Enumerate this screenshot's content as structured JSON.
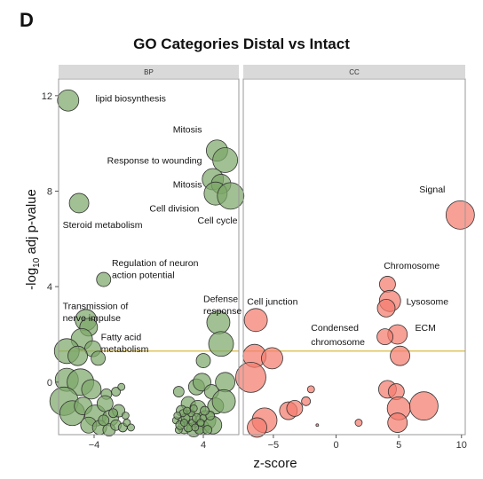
{
  "panel_letter": "D",
  "chart_data": {
    "type": "scatter",
    "title": "GO Categories Distal vs Intact",
    "xlabel": "z-score",
    "ylabel_main": "-log",
    "ylabel_sub": "10",
    "ylabel_tail": " adj p-value",
    "ylim": [
      -2.2,
      12.7
    ],
    "threshold_y": 1.3,
    "grid": false,
    "colors": {
      "BP": "#7da86a",
      "CC": "#f47c6e",
      "threshold": "#d4b02a",
      "strip": "#d9d9d9",
      "frame": "#999999"
    },
    "facets": [
      {
        "label": "BP",
        "xlim": [
          -6.6,
          6.6
        ],
        "xticks": [
          -4,
          4
        ],
        "xtick_labels": [
          "−4",
          "4"
        ],
        "yticks": [
          0,
          4,
          8,
          12
        ],
        "ytick_labels": [
          "0",
          "4",
          "8",
          "12"
        ],
        "points": [
          {
            "x": -5.9,
            "y": 11.8,
            "size": 12
          },
          {
            "x": 5.0,
            "y": 9.7,
            "size": 12
          },
          {
            "x": 5.6,
            "y": 9.3,
            "size": 14
          },
          {
            "x": 4.7,
            "y": 8.5,
            "size": 12
          },
          {
            "x": 5.3,
            "y": 8.3,
            "size": 11
          },
          {
            "x": 4.9,
            "y": 7.9,
            "size": 13
          },
          {
            "x": 6.0,
            "y": 7.8,
            "size": 15
          },
          {
            "x": -5.1,
            "y": 7.5,
            "size": 11
          },
          {
            "x": -3.3,
            "y": 4.3,
            "size": 8
          },
          {
            "x": -4.6,
            "y": 2.6,
            "size": 12
          },
          {
            "x": -4.4,
            "y": 2.3,
            "size": 10
          },
          {
            "x": -4.9,
            "y": 1.8,
            "size": 12
          },
          {
            "x": -4.1,
            "y": 1.4,
            "size": 9
          },
          {
            "x": -6.0,
            "y": 1.3,
            "size": 14
          },
          {
            "x": -5.2,
            "y": 1.1,
            "size": 11
          },
          {
            "x": -3.7,
            "y": 1.0,
            "size": 8
          },
          {
            "x": 5.1,
            "y": 2.5,
            "size": 13
          },
          {
            "x": 5.3,
            "y": 1.6,
            "size": 14
          },
          {
            "x": -6.0,
            "y": 0.1,
            "size": 13
          },
          {
            "x": -5.0,
            "y": 0.0,
            "size": 15
          },
          {
            "x": -4.2,
            "y": -0.3,
            "size": 11
          },
          {
            "x": -6.2,
            "y": -0.8,
            "size": 16
          },
          {
            "x": -5.6,
            "y": -1.3,
            "size": 14
          },
          {
            "x": -4.8,
            "y": -1.0,
            "size": 10
          },
          {
            "x": -3.1,
            "y": -0.5,
            "size": 6
          },
          {
            "x": -2.4,
            "y": -0.4,
            "size": 5
          },
          {
            "x": -3.9,
            "y": -1.4,
            "size": 12
          },
          {
            "x": -3.2,
            "y": -0.9,
            "size": 9
          },
          {
            "x": -2.8,
            "y": -1.5,
            "size": 9
          },
          {
            "x": -2.2,
            "y": -1.2,
            "size": 7
          },
          {
            "x": -4.4,
            "y": -1.8,
            "size": 9
          },
          {
            "x": -3.6,
            "y": -1.9,
            "size": 8
          },
          {
            "x": -2.9,
            "y": -2.0,
            "size": 7
          },
          {
            "x": -2.4,
            "y": -1.8,
            "size": 6
          },
          {
            "x": -1.9,
            "y": -1.9,
            "size": 5
          },
          {
            "x": -1.6,
            "y": -1.7,
            "size": 4
          },
          {
            "x": -3.3,
            "y": -1.6,
            "size": 6
          },
          {
            "x": -2.6,
            "y": -1.3,
            "size": 5
          },
          {
            "x": -1.3,
            "y": -1.9,
            "size": 4
          },
          {
            "x": -1.7,
            "y": -1.4,
            "size": 4
          },
          {
            "x": -2.0,
            "y": -0.2,
            "size": 4
          },
          {
            "x": 2.2,
            "y": -0.4,
            "size": 6
          },
          {
            "x": 2.9,
            "y": -0.9,
            "size": 8
          },
          {
            "x": 3.5,
            "y": -0.2,
            "size": 9
          },
          {
            "x": 4.0,
            "y": 0.9,
            "size": 8
          },
          {
            "x": 3.9,
            "y": 0.0,
            "size": 10
          },
          {
            "x": 4.6,
            "y": -0.4,
            "size": 8
          },
          {
            "x": 5.6,
            "y": 0.0,
            "size": 11
          },
          {
            "x": 2.4,
            "y": -1.2,
            "size": 6
          },
          {
            "x": 3.0,
            "y": -1.5,
            "size": 7
          },
          {
            "x": 3.6,
            "y": -1.1,
            "size": 9
          },
          {
            "x": 4.2,
            "y": -1.6,
            "size": 11
          },
          {
            "x": 4.9,
            "y": -1.0,
            "size": 9
          },
          {
            "x": 5.5,
            "y": -0.8,
            "size": 13
          },
          {
            "x": 2.6,
            "y": -1.9,
            "size": 7
          },
          {
            "x": 3.3,
            "y": -2.0,
            "size": 8
          },
          {
            "x": 3.9,
            "y": -1.9,
            "size": 8
          },
          {
            "x": 4.7,
            "y": -1.8,
            "size": 10
          },
          {
            "x": 2.0,
            "y": -1.6,
            "size": 4
          },
          {
            "x": 2.2,
            "y": -2.0,
            "size": 4
          },
          {
            "x": 2.4,
            "y": -1.6,
            "size": 4
          },
          {
            "x": 2.7,
            "y": -1.5,
            "size": 5
          },
          {
            "x": 2.9,
            "y": -1.9,
            "size": 5
          },
          {
            "x": 3.2,
            "y": -1.7,
            "size": 4
          },
          {
            "x": 3.5,
            "y": -1.5,
            "size": 5
          },
          {
            "x": 3.7,
            "y": -2.0,
            "size": 5
          },
          {
            "x": 4.0,
            "y": -1.5,
            "size": 4
          },
          {
            "x": 4.3,
            "y": -2.0,
            "size": 5
          },
          {
            "x": 3.1,
            "y": -1.3,
            "size": 4
          },
          {
            "x": 2.5,
            "y": -1.3,
            "size": 4
          },
          {
            "x": 2.8,
            "y": -1.2,
            "size": 4
          },
          {
            "x": 3.4,
            "y": -1.9,
            "size": 4
          },
          {
            "x": 4.5,
            "y": -1.4,
            "size": 5
          },
          {
            "x": 2.3,
            "y": -1.8,
            "size": 5
          },
          {
            "x": 2.1,
            "y": -1.4,
            "size": 4
          },
          {
            "x": 3.8,
            "y": -1.7,
            "size": 4
          },
          {
            "x": 4.1,
            "y": -1.2,
            "size": 5
          },
          {
            "x": 3.3,
            "y": -1.1,
            "size": 4
          },
          {
            "x": 2.6,
            "y": -1.7,
            "size": 4
          }
        ],
        "labels": [
          {
            "text": "lipid biosynthesis",
            "x": -3.9,
            "y": 11.9,
            "anchor": "start"
          },
          {
            "text": "Mitosis",
            "x": 3.9,
            "y": 10.6,
            "anchor": "end"
          },
          {
            "text": "Response to wounding",
            "x": 3.9,
            "y": 9.3,
            "anchor": "end"
          },
          {
            "text": "Mitosis",
            "x": 3.9,
            "y": 8.3,
            "anchor": "end"
          },
          {
            "text": "Cell division",
            "x": 3.7,
            "y": 7.3,
            "anchor": "end"
          },
          {
            "text": "Cell cycle",
            "x": 6.5,
            "y": 6.8,
            "anchor": "end"
          },
          {
            "text": "Steroid metabolism",
            "x": -6.3,
            "y": 6.6,
            "anchor": "start"
          },
          {
            "text": "Regulation of neuron",
            "x": -2.7,
            "y": 5.0,
            "anchor": "start"
          },
          {
            "text": "action potential",
            "x": -2.7,
            "y": 4.5,
            "anchor": "start"
          },
          {
            "text": "Transmission of",
            "x": -6.3,
            "y": 3.2,
            "anchor": "start"
          },
          {
            "text": "nerve impulse",
            "x": -6.3,
            "y": 2.7,
            "anchor": "start"
          },
          {
            "text": "Fatty acid",
            "x": -3.5,
            "y": 1.9,
            "anchor": "start"
          },
          {
            "text": "metabolism",
            "x": -3.5,
            "y": 1.4,
            "anchor": "start"
          },
          {
            "text": "Defense",
            "x": 4.0,
            "y": 3.5,
            "anchor": "start"
          },
          {
            "text": "response",
            "x": 4.0,
            "y": 3.0,
            "anchor": "start"
          }
        ]
      },
      {
        "label": "CC",
        "xlim": [
          -7.4,
          10.3
        ],
        "xticks": [
          -5,
          0,
          5,
          10
        ],
        "xtick_labels": [
          "−5",
          "0",
          "5",
          "10"
        ],
        "yticks": [],
        "ytick_labels": [],
        "points": [
          {
            "x": 9.9,
            "y": 7.0,
            "size": 16
          },
          {
            "x": 4.1,
            "y": 4.1,
            "size": 9
          },
          {
            "x": 4.3,
            "y": 3.4,
            "size": 12
          },
          {
            "x": 4.0,
            "y": 3.1,
            "size": 10
          },
          {
            "x": -6.4,
            "y": 2.6,
            "size": 13
          },
          {
            "x": 4.9,
            "y": 2.0,
            "size": 11
          },
          {
            "x": 3.9,
            "y": 1.9,
            "size": 9
          },
          {
            "x": -6.5,
            "y": 1.1,
            "size": 13
          },
          {
            "x": -5.1,
            "y": 1.0,
            "size": 12
          },
          {
            "x": 5.1,
            "y": 1.1,
            "size": 11
          },
          {
            "x": -6.8,
            "y": 0.2,
            "size": 17
          },
          {
            "x": -2.0,
            "y": -0.3,
            "size": 4
          },
          {
            "x": 4.1,
            "y": -0.3,
            "size": 10
          },
          {
            "x": 4.8,
            "y": -0.4,
            "size": 9
          },
          {
            "x": -2.4,
            "y": -0.8,
            "size": 5
          },
          {
            "x": -3.8,
            "y": -1.2,
            "size": 10
          },
          {
            "x": -3.3,
            "y": -1.1,
            "size": 9
          },
          {
            "x": 5.0,
            "y": -1.1,
            "size": 13
          },
          {
            "x": 7.0,
            "y": -1.0,
            "size": 16
          },
          {
            "x": -5.7,
            "y": -1.6,
            "size": 14
          },
          {
            "x": -6.3,
            "y": -1.9,
            "size": 11
          },
          {
            "x": 4.9,
            "y": -1.7,
            "size": 11
          },
          {
            "x": 1.8,
            "y": -1.7,
            "size": 4
          },
          {
            "x": -1.5,
            "y": -1.8,
            "size": 1.5
          }
        ],
        "labels": [
          {
            "text": "Signal",
            "x": 8.7,
            "y": 8.1,
            "anchor": "end"
          },
          {
            "text": "Chromosome",
            "x": 3.8,
            "y": 4.9,
            "anchor": "start"
          },
          {
            "text": "Cell junction",
            "x": -7.1,
            "y": 3.4,
            "anchor": "start"
          },
          {
            "text": "Lysosome",
            "x": 5.6,
            "y": 3.4,
            "anchor": "start"
          },
          {
            "text": "Condensed",
            "x": -2.0,
            "y": 2.3,
            "anchor": "start"
          },
          {
            "text": "chromosome",
            "x": -2.0,
            "y": 1.7,
            "anchor": "start"
          },
          {
            "text": "ECM",
            "x": 6.3,
            "y": 2.3,
            "anchor": "start"
          }
        ]
      }
    ]
  }
}
